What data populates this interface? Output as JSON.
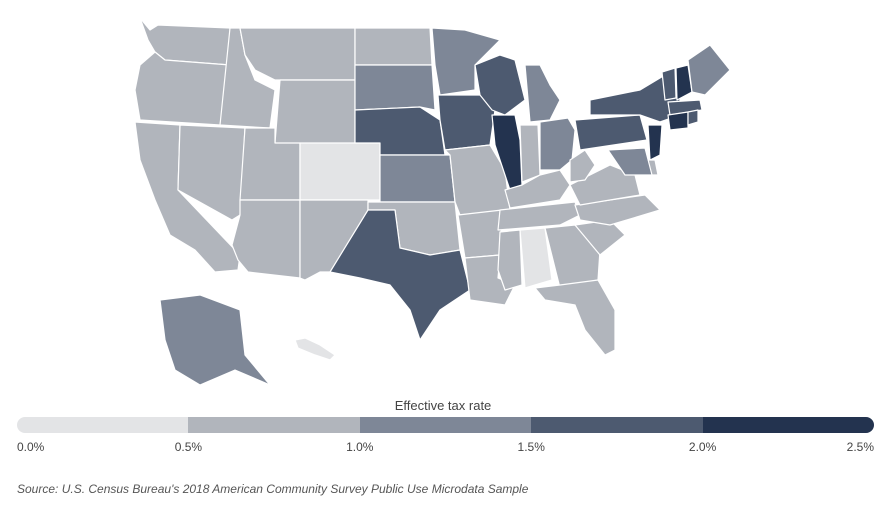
{
  "chart_data": {
    "type": "choropleth",
    "legend_title": "Effective tax rate",
    "legend_ticks": [
      "0.0%",
      "0.5%",
      "1.0%",
      "1.5%",
      "2.0%",
      "2.5%"
    ],
    "bins": [
      {
        "range": [
          0.0,
          0.5
        ],
        "color": "#e3e4e6"
      },
      {
        "range": [
          0.5,
          1.0
        ],
        "color": "#b1b5bc"
      },
      {
        "range": [
          1.0,
          1.5
        ],
        "color": "#7e8797"
      },
      {
        "range": [
          1.5,
          2.0
        ],
        "color": "#4d5a70"
      },
      {
        "range": [
          2.0,
          2.5
        ],
        "color": "#23334f"
      }
    ],
    "states": {
      "WA": 1,
      "OR": 1,
      "CA": 1,
      "ID": 1,
      "NV": 1,
      "MT": 1,
      "WY": 1,
      "UT": 1,
      "AZ": 1,
      "CO": 0,
      "NM": 1,
      "ND": 1,
      "SD": 2,
      "NE": 3,
      "KS": 2,
      "OK": 1,
      "TX": 3,
      "MN": 2,
      "IA": 3,
      "MO": 1,
      "AR": 1,
      "LA": 1,
      "WI": 3,
      "IL": 4,
      "MI": 2,
      "IN": 1,
      "OH": 2,
      "KY": 1,
      "TN": 1,
      "MS": 1,
      "AL": 0,
      "GA": 1,
      "FL": 1,
      "SC": 1,
      "NC": 1,
      "VA": 1,
      "WV": 1,
      "PA": 3,
      "NY": 3,
      "VT": 3,
      "NH": 4,
      "ME": 2,
      "MA": 3,
      "CT": 4,
      "RI": 3,
      "NJ": 4,
      "DE": 1,
      "MD": 2,
      "AK": 2,
      "HI": 0
    }
  },
  "source": "Source: U.S. Census Bureau's 2018 American Community Survey Public Use Microdata Sample"
}
